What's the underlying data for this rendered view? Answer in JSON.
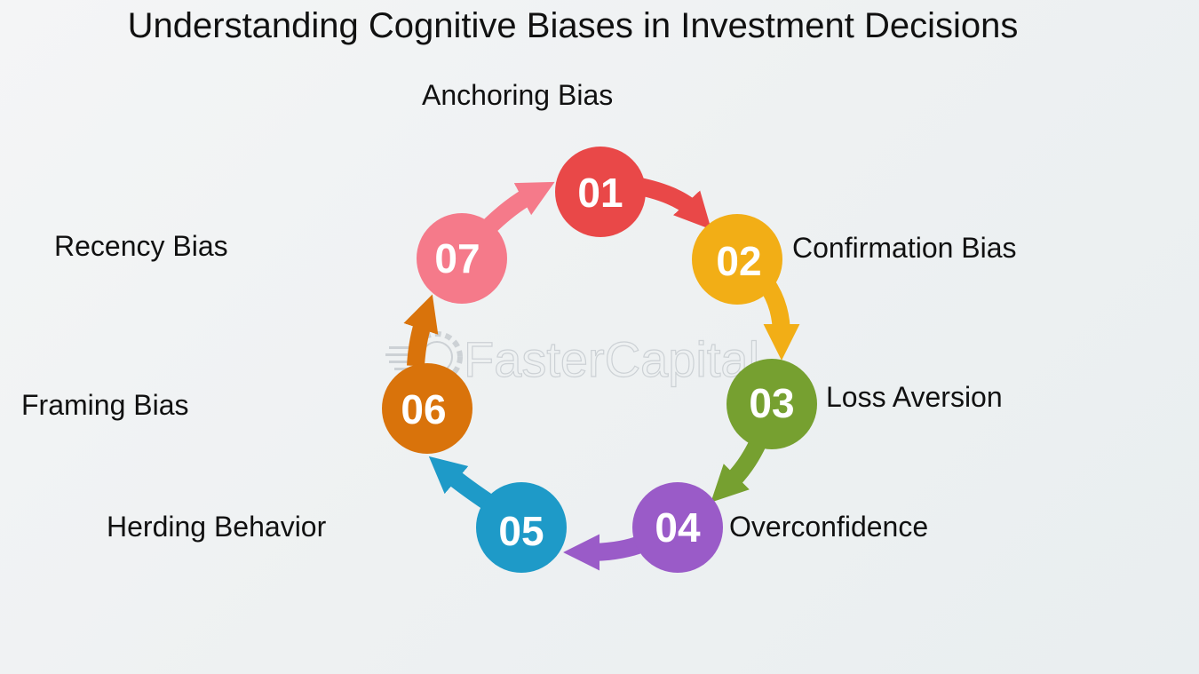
{
  "title": "Understanding Cognitive Biases in Investment Decisions",
  "watermark": "FasterCapital",
  "steps": [
    {
      "number": "01",
      "label": "Anchoring Bias",
      "color": "#e94848"
    },
    {
      "number": "02",
      "label": "Confirmation Bias",
      "color": "#f2ae16"
    },
    {
      "number": "03",
      "label": "Loss Aversion",
      "color": "#76a030"
    },
    {
      "number": "04",
      "label": "Overconfidence",
      "color": "#9a5bc8"
    },
    {
      "number": "05",
      "label": "Herding Behavior",
      "color": "#1e9ac8"
    },
    {
      "number": "06",
      "label": "Framing Bias",
      "color": "#d9730b"
    },
    {
      "number": "07",
      "label": "Recency Bias",
      "color": "#f57a8a"
    }
  ]
}
